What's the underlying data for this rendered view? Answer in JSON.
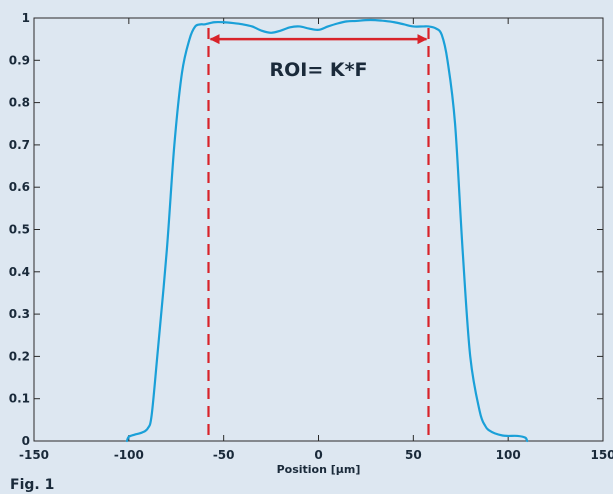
{
  "chart_data": {
    "type": "line",
    "title": "",
    "xlabel": "Position [µm]",
    "ylabel": "",
    "xlim": [
      -150,
      150
    ],
    "ylim": [
      0,
      1
    ],
    "x_ticks": [
      -150,
      -100,
      -50,
      0,
      50,
      100,
      150
    ],
    "x_tick_labels": [
      "-150",
      "-100",
      "-50",
      "0",
      "50",
      "100",
      "150"
    ],
    "y_ticks": [
      0,
      0.1,
      0.2,
      0.3,
      0.4,
      0.5,
      0.6,
      0.7,
      0.8,
      0.9,
      1
    ],
    "y_tick_labels": [
      "0",
      "0.1",
      "0.2",
      "0.3",
      "0.4",
      "0.5",
      "0.6",
      "0.7",
      "0.8",
      "0.9",
      "1"
    ],
    "grid": false,
    "line_color": "#1aa0d8",
    "annotation_color": "#d8232a",
    "series": [
      {
        "x": [
          -101,
          -100,
          -97,
          -93,
          -90,
          -88,
          -85,
          -80,
          -76,
          -72,
          -68,
          -65,
          -62,
          -60,
          -55,
          -50,
          -45,
          -40,
          -35,
          -30,
          -25,
          -20,
          -15,
          -10,
          -5,
          0,
          5,
          10,
          15,
          20,
          25,
          30,
          35,
          40,
          45,
          50,
          55,
          58,
          62,
          65,
          68,
          72,
          76,
          80,
          85,
          88,
          90,
          93,
          97,
          100,
          105,
          109,
          110
        ],
        "y": [
          0,
          0.01,
          0.015,
          0.02,
          0.03,
          0.06,
          0.2,
          0.45,
          0.7,
          0.87,
          0.95,
          0.98,
          0.985,
          0.985,
          0.99,
          0.99,
          0.988,
          0.985,
          0.98,
          0.97,
          0.965,
          0.97,
          0.978,
          0.98,
          0.975,
          0.972,
          0.98,
          0.987,
          0.992,
          0.993,
          0.995,
          0.995,
          0.993,
          0.99,
          0.985,
          0.98,
          0.98,
          0.98,
          0.975,
          0.96,
          0.9,
          0.75,
          0.45,
          0.2,
          0.07,
          0.035,
          0.025,
          0.018,
          0.013,
          0.012,
          0.012,
          0.008,
          0
        ]
      }
    ],
    "roi_lines_x": [
      -58,
      58
    ],
    "roi_arrow_y": 0.95,
    "roi_label": "ROI= K*F",
    "caption": "Fig. 1"
  }
}
